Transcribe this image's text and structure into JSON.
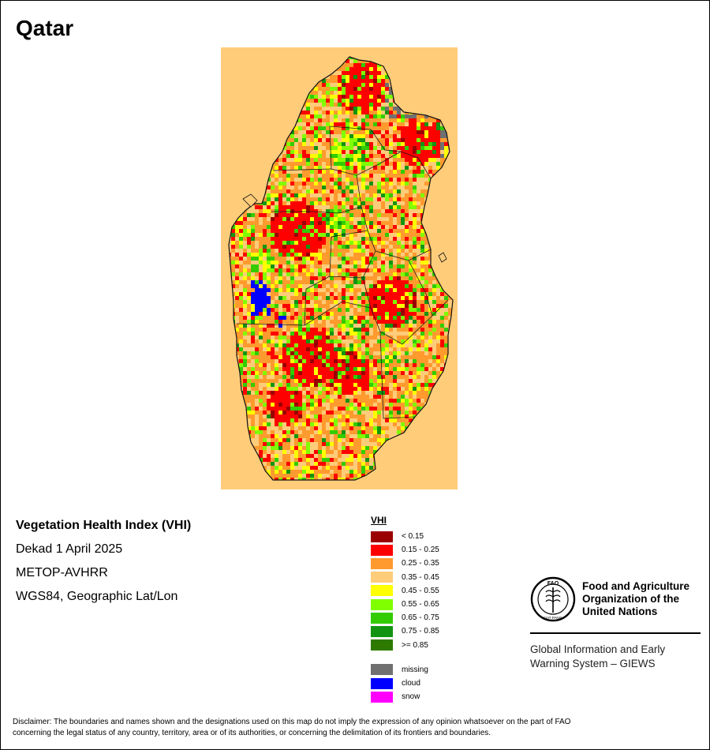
{
  "map": {
    "country": "Qatar"
  },
  "info": {
    "index_name": "Vegetation Health Index (VHI)",
    "period": "Dekad 1 April 2025",
    "sensor": "METOP-AVHRR",
    "projection": "WGS84, Geographic Lat/Lon"
  },
  "legend": {
    "title": "VHI",
    "classes": [
      {
        "label": "< 0.15",
        "color": "#9b0000"
      },
      {
        "label": "0.15 - 0.25",
        "color": "#ff0000"
      },
      {
        "label": "0.25 - 0.35",
        "color": "#ff9a2e"
      },
      {
        "label": "0.35 - 0.45",
        "color": "#ffcc7a"
      },
      {
        "label": "0.45 - 0.55",
        "color": "#ffff00"
      },
      {
        "label": "0.55 - 0.65",
        "color": "#80ff00"
      },
      {
        "label": "0.65 - 0.75",
        "color": "#33cc00"
      },
      {
        "label": "0.75 - 0.85",
        "color": "#129412"
      },
      {
        "label": ">= 0.85",
        "color": "#2e7a00"
      }
    ],
    "special": [
      {
        "label": "missing",
        "color": "#707070"
      },
      {
        "label": "cloud",
        "color": "#0000ff"
      },
      {
        "label": "snow",
        "color": "#ff00ff"
      }
    ]
  },
  "organization": {
    "name_line1": "Food and Agriculture",
    "name_line2": "Organization of the",
    "name_line3": "United Nations",
    "emblem_text": "FAO",
    "emblem_motto": "FIAT PANIS",
    "system_line1": "Global Information and Early",
    "system_line2": "Warning System – GIEWS"
  },
  "disclaimer": {
    "line1": "Disclaimer: The boundaries and names shown and the designations used on this map do not imply the expression of any opinion whatsoever on the part of FAO",
    "line2": "concerning the legal status of any country, territory, area or of its authorities, or concerning the delimitation of its frontiers and boundaries."
  }
}
